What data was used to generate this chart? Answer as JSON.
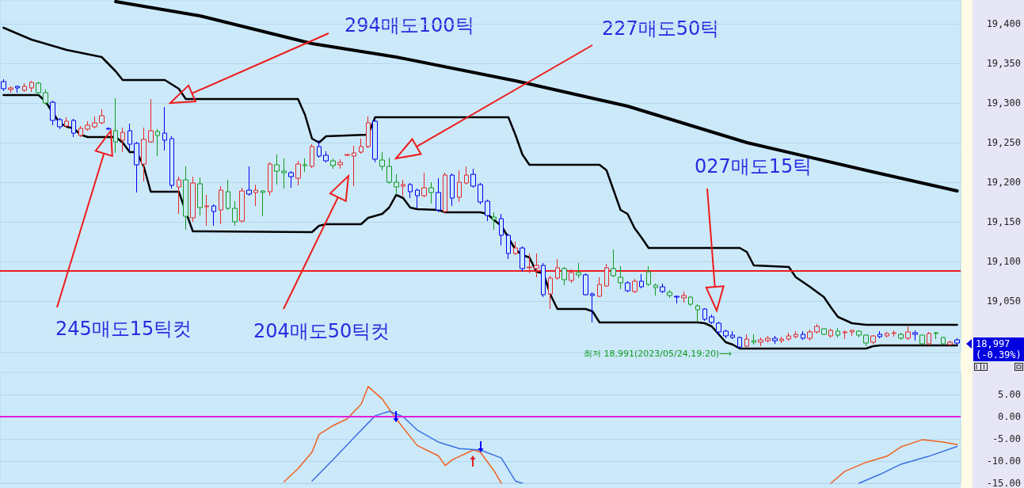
{
  "chart_data": [
    {
      "type": "candlestick",
      "categories": [
        null,
        null,
        null,
        null,
        null,
        null,
        null,
        null,
        null,
        null,
        null,
        null,
        null,
        null,
        null,
        null,
        null,
        null,
        null,
        null,
        null,
        null,
        null,
        null,
        null,
        null,
        null,
        null,
        null,
        null,
        null,
        null,
        null,
        null,
        null,
        null,
        null,
        null,
        null,
        null,
        null,
        null,
        null,
        null,
        null,
        null,
        null,
        null,
        null,
        null,
        null,
        null,
        null,
        null,
        null,
        null,
        null,
        null,
        null,
        null,
        null,
        null,
        null,
        null,
        null,
        null,
        null,
        null,
        null,
        null,
        null,
        null,
        null,
        null,
        null,
        null,
        null,
        null,
        null,
        null,
        null,
        null,
        null,
        null,
        null,
        null,
        null,
        null,
        null,
        null,
        null,
        null,
        null,
        null,
        null,
        null,
        null,
        null,
        null,
        null,
        null,
        null,
        null,
        null,
        null,
        null,
        null,
        null,
        null,
        null,
        null,
        null,
        null,
        null,
        null,
        null,
        null,
        null,
        null,
        null,
        null,
        null,
        null,
        null,
        null,
        null,
        null,
        null,
        null,
        null,
        null,
        null,
        null,
        null,
        null,
        null,
        null
      ],
      "ohlc": [
        [
          19327,
          19330,
          19315,
          19318
        ],
        [
          19317,
          19321,
          19313,
          19319
        ],
        [
          19321,
          19322,
          19313,
          19319
        ],
        [
          19316,
          19325,
          19314,
          19321
        ],
        [
          19319,
          19328,
          19314,
          19326
        ],
        [
          19325,
          19327,
          19310,
          19313
        ],
        [
          19313,
          19317,
          19298,
          19300
        ],
        [
          19301,
          19303,
          19272,
          19278
        ],
        [
          19279,
          19281,
          19267,
          19270
        ],
        [
          19271,
          19282,
          19269,
          19277
        ],
        [
          19278,
          19280,
          19257,
          19262
        ],
        [
          19259,
          19271,
          19257,
          19268
        ],
        [
          19267,
          19277,
          19265,
          19272
        ],
        [
          19270,
          19283,
          19268,
          19275
        ],
        [
          19275,
          19292,
          19273,
          19284
        ],
        [
          19268,
          19269,
          19266,
          19267
        ],
        [
          19265,
          19306,
          19237,
          19251
        ],
        [
          19253,
          19269,
          19238,
          19263
        ],
        [
          19265,
          19274,
          19240,
          19248
        ],
        [
          19249,
          19251,
          19187,
          19222
        ],
        [
          19223,
          19269,
          19201,
          19254
        ],
        [
          19251,
          19305,
          19250,
          19265
        ],
        [
          19264,
          19267,
          19233,
          19259
        ],
        [
          19262,
          19295,
          19240,
          19253
        ],
        [
          19255,
          19258,
          19192,
          19196
        ],
        [
          19194,
          19207,
          19160,
          19203
        ],
        [
          19203,
          19220,
          19140,
          19157
        ],
        [
          19155,
          19207,
          19150,
          19199
        ],
        [
          19198,
          19206,
          19158,
          19168
        ],
        [
          19169,
          19184,
          19145,
          19170
        ],
        [
          19170,
          19172,
          19145,
          19163
        ],
        [
          19165,
          19195,
          19147,
          19190
        ],
        [
          19188,
          19203,
          19165,
          19167
        ],
        [
          19167,
          19176,
          19145,
          19150
        ],
        [
          19151,
          19193,
          19149,
          19189
        ],
        [
          19190,
          19220,
          19183,
          19185
        ],
        [
          19187,
          19197,
          19170,
          19190
        ],
        [
          19189,
          19190,
          19157,
          19187
        ],
        [
          19188,
          19225,
          19183,
          19223
        ],
        [
          19222,
          19235,
          19197,
          19214
        ],
        [
          19214,
          19230,
          19192,
          19212
        ],
        [
          19212,
          19214,
          19193,
          19207
        ],
        [
          19205,
          19227,
          19196,
          19223
        ],
        [
          19222,
          19230,
          19213,
          19221
        ],
        [
          19220,
          19248,
          19218,
          19245
        ],
        [
          19245,
          19253,
          19231,
          19233
        ],
        [
          19234,
          19239,
          19225,
          19227
        ],
        [
          19227,
          19230,
          19217,
          19221
        ],
        [
          19222,
          19229,
          19217,
          19225
        ],
        [
          19234,
          19236,
          19233,
          19235
        ],
        [
          19233,
          19246,
          19195,
          19237
        ],
        [
          19238,
          19255,
          19236,
          19245
        ],
        [
          19245,
          19283,
          19243,
          19275
        ],
        [
          19277,
          19279,
          19225,
          19229
        ],
        [
          19228,
          19238,
          19215,
          19220
        ],
        [
          19220,
          19231,
          19198,
          19200
        ],
        [
          19200,
          19210,
          19184,
          19194
        ],
        [
          19195,
          19203,
          19183,
          19197
        ],
        [
          19197,
          19199,
          19180,
          19188
        ],
        [
          19190,
          19192,
          19167,
          19183
        ],
        [
          19183,
          19212,
          19181,
          19193
        ],
        [
          19193,
          19200,
          19173,
          19187
        ],
        [
          19187,
          19205,
          19162,
          19165
        ],
        [
          19163,
          19212,
          19161,
          19209
        ],
        [
          19209,
          19211,
          19170,
          19180
        ],
        [
          19181,
          19215,
          19175,
          19200
        ],
        [
          19199,
          19220,
          19197,
          19209
        ],
        [
          19210,
          19217,
          19193,
          19195
        ],
        [
          19197,
          19199,
          19172,
          19175
        ],
        [
          19176,
          19178,
          19151,
          19158
        ],
        [
          19156,
          19162,
          19140,
          19153
        ],
        [
          19154,
          19160,
          19120,
          19133
        ],
        [
          19133,
          19135,
          19103,
          19110
        ],
        [
          19110,
          19125,
          19108,
          19117
        ],
        [
          19117,
          19119,
          19087,
          19091
        ],
        [
          19092,
          19110,
          19085,
          19093
        ],
        [
          19091,
          19110,
          19080,
          19095
        ],
        [
          19095,
          19098,
          19055,
          19058
        ],
        [
          19059,
          19082,
          19040,
          19079
        ],
        [
          19079,
          19103,
          19077,
          19092
        ],
        [
          19091,
          19093,
          19070,
          19077
        ],
        [
          19076,
          19090,
          19073,
          19086
        ],
        [
          19086,
          19098,
          19079,
          19083
        ],
        [
          19083,
          19085,
          19057,
          19058
        ],
        [
          19059,
          19061,
          19023,
          19057
        ],
        [
          19056,
          19080,
          19055,
          19071
        ],
        [
          19069,
          19097,
          19068,
          19092
        ],
        [
          19091,
          19115,
          19080,
          19082
        ],
        [
          19080,
          19094,
          19065,
          19073
        ],
        [
          19073,
          19075,
          19061,
          19063
        ],
        [
          19062,
          19078,
          19060,
          19075
        ],
        [
          19075,
          19084,
          19066,
          19068
        ],
        [
          19087,
          19094,
          19069,
          19071
        ],
        [
          19070,
          19072,
          19057,
          19067
        ],
        [
          19068,
          19072,
          19060,
          19062
        ],
        [
          19061,
          19064,
          19054,
          19057
        ],
        [
          19056,
          19057,
          19047,
          19055
        ],
        [
          19054,
          19062,
          19048,
          19057
        ],
        [
          19055,
          19056,
          19044,
          19046
        ],
        [
          19044,
          19046,
          19024,
          19039
        ],
        [
          19040,
          19041,
          19025,
          19027
        ],
        [
          19030,
          19033,
          19021,
          19023
        ],
        [
          19022,
          19024,
          19008,
          19011
        ],
        [
          19012,
          19014,
          19003,
          19006
        ],
        [
          19007,
          19012,
          19002,
          19004
        ],
        [
          19004,
          19005,
          18991,
          18992
        ],
        [
          18993,
          19008,
          18992,
          19002
        ],
        [
          19000,
          19008,
          18995,
          18998
        ],
        [
          18998,
          19004,
          18993,
          19001
        ],
        [
          19000,
          19006,
          18998,
          19003
        ],
        [
          19003,
          19006,
          18996,
          19000
        ],
        [
          19000,
          19005,
          18997,
          19002
        ],
        [
          19002,
          19010,
          19000,
          19006
        ],
        [
          19005,
          19012,
          19003,
          19008
        ],
        [
          19008,
          19012,
          19001,
          19003
        ],
        [
          19003,
          19014,
          19000,
          19011
        ],
        [
          19011,
          19021,
          19009,
          19018
        ],
        [
          19015,
          19016,
          19007,
          19008
        ],
        [
          19006,
          19015,
          19004,
          19013
        ],
        [
          19012,
          19016,
          19004,
          19007
        ],
        [
          19010,
          19013,
          19002,
          19011
        ],
        [
          19011,
          19014,
          19006,
          19013
        ],
        [
          19012,
          19013,
          19004,
          19007
        ],
        [
          19007,
          19008,
          18993,
          18997
        ],
        [
          18998,
          19007,
          18996,
          19006
        ],
        [
          19008,
          19012,
          19003,
          19005
        ],
        [
          19006,
          19011,
          19004,
          19009
        ],
        [
          19009,
          19013,
          19005,
          19010
        ],
        [
          19008,
          19010,
          19001,
          19003
        ],
        [
          19003,
          19018,
          19001,
          19011
        ],
        [
          19010,
          19013,
          19000,
          19008
        ],
        [
          19007,
          19008,
          18995,
          18996
        ],
        [
          18996,
          19011,
          18994,
          19009
        ],
        [
          19010,
          19011,
          19002,
          19009
        ],
        [
          19004,
          19005,
          18995,
          18996
        ],
        [
          18995,
          19000,
          18994,
          18998
        ],
        [
          19001,
          19003,
          18995,
          18997
        ]
      ],
      "colors": [
        "#0000f0",
        "#e62828",
        "#0000f0",
        "#e62828",
        "#e62828",
        "#109c20",
        "#109c20",
        "#0000f0",
        "#0000f0",
        "#e62828",
        "#0000f0",
        "#e62828",
        "#e62828",
        "#e62828",
        "#e62828",
        "#0000f0",
        "#109c20",
        "#e62828",
        "#0000f0",
        "#0000f0",
        "#e62828",
        "#e62828",
        "#109c20",
        "#0000f0",
        "#0000f0",
        "#e62828",
        "#109c20",
        "#e62828",
        "#109c20",
        "#e62828",
        "#0000f0",
        "#e62828",
        "#109c20",
        "#109c20",
        "#e62828",
        "#0000f0",
        "#e62828",
        "#109c20",
        "#e62828",
        "#109c20",
        "#109c20",
        "#0000f0",
        "#e62828",
        "#109c20",
        "#e62828",
        "#0000f0",
        "#0000f0",
        "#109c20",
        "#e62828",
        "#e62828",
        "#e62828",
        "#e62828",
        "#e62828",
        "#0000f0",
        "#109c20",
        "#109c20",
        "#109c20",
        "#e62828",
        "#0000f0",
        "#0000f0",
        "#e62828",
        "#109c20",
        "#0000f0",
        "#e62828",
        "#0000f0",
        "#e62828",
        "#e62828",
        "#0000f0",
        "#0000f0",
        "#0000f0",
        "#109c20",
        "#0000f0",
        "#0000f0",
        "#e62828",
        "#0000f0",
        "#e62828",
        "#e62828",
        "#0000f0",
        "#e62828",
        "#e62828",
        "#109c20",
        "#e62828",
        "#109c20",
        "#0000f0",
        "#0000f0",
        "#e62828",
        "#e62828",
        "#109c20",
        "#109c20",
        "#0000f0",
        "#e62828",
        "#0000f0",
        "#109c20",
        "#109c20",
        "#0000f0",
        "#109c20",
        "#0000f0",
        "#e62828",
        "#109c20",
        "#109c20",
        "#0000f0",
        "#0000f0",
        "#0000f0",
        "#0000f0",
        "#0000f0",
        "#0000f0",
        "#e62828",
        "#109c20",
        "#e62828",
        "#e62828",
        "#0000f0",
        "#e62828",
        "#e62828",
        "#e62828",
        "#0000f0",
        "#e62828",
        "#e62828",
        "#109c20",
        "#e62828",
        "#109c20",
        "#e62828",
        "#e62828",
        "#109c20",
        "#109c20",
        "#e62828",
        "#0000f0",
        "#e62828",
        "#e62828",
        "#109c20",
        "#e62828",
        "#0000f0",
        "#109c20",
        "#e62828",
        "#109c20",
        "#109c20",
        "#e62828",
        "#0000f0"
      ],
      "series": [
        {
          "type": "line",
          "color": "#000000",
          "values": [
            19395,
            null,
            null,
            null,
            19380,
            null,
            null,
            null,
            null,
            19367,
            null,
            null,
            null,
            null,
            19358,
            null,
            19340,
            19329,
            null,
            null,
            null,
            null,
            null,
            19329,
            null,
            19318,
            19305,
            null,
            null,
            null,
            null,
            null,
            null,
            null,
            null,
            null,
            null,
            null,
            null,
            null,
            null,
            null,
            19305,
            19285,
            19255,
            19250,
            19258,
            null,
            null,
            null,
            null,
            null,
            19260,
            19282,
            null,
            null,
            null,
            null,
            null,
            null,
            null,
            null,
            null,
            null,
            null,
            null,
            null,
            null,
            null,
            null,
            null,
            null,
            19282,
            19260,
            19235,
            19222,
            null,
            null,
            null,
            null,
            null,
            null,
            null,
            null,
            null,
            19222,
            19215,
            19190,
            19165,
            19160,
            19142,
            19130,
            19117,
            null,
            null,
            null,
            null,
            null,
            null,
            null,
            null,
            null,
            null,
            null,
            null,
            19117,
            19112,
            19095,
            null,
            null,
            null,
            null,
            19093,
            19080,
            null,
            19068,
            null,
            19055,
            19042,
            19030,
            null,
            19022,
            null,
            19020,
            null,
            null,
            null,
            null,
            null,
            null,
            null,
            null,
            null,
            null,
            null,
            null,
            19020
          ]
        },
        {
          "type": "line",
          "color": "#000000",
          "values": [
            19310,
            null,
            null,
            null,
            null,
            19310,
            19302,
            19288,
            19275,
            19270,
            19268,
            19260,
            19257,
            null,
            null,
            19257,
            19257,
            19250,
            19238,
            19238,
            19220,
            19188,
            null,
            null,
            null,
            19188,
            null,
            19138,
            null,
            null,
            null,
            null,
            null,
            null,
            null,
            null,
            null,
            null,
            null,
            null,
            null,
            null,
            null,
            null,
            19137,
            19145,
            19147,
            null,
            null,
            null,
            null,
            19147,
            19155,
            null,
            19160,
            19168,
            19184,
            19180,
            19168,
            19166,
            null,
            null,
            19165,
            19162,
            null,
            null,
            null,
            null,
            19162,
            19160,
            19152,
            19145,
            19130,
            19115,
            19108,
            19105,
            19087,
            19085,
            19058,
            19040,
            null,
            null,
            null,
            19040,
            19037,
            19023,
            null,
            null,
            null,
            null,
            null,
            null,
            null,
            null,
            null,
            null,
            null,
            null,
            null,
            19023,
            19022,
            19018,
            19008,
            18998,
            18995,
            18990,
            null,
            null,
            null,
            null,
            null,
            null,
            null,
            null,
            null,
            null,
            null,
            null,
            null,
            null,
            null,
            null,
            null,
            18990,
            18993,
            18994,
            null,
            null,
            null,
            null,
            null,
            null,
            null,
            null,
            null,
            null,
            18994
          ]
        },
        {
          "type": "line",
          "color": "#000000",
          "values": [
            null,
            null,
            null,
            null,
            null,
            null,
            null,
            null,
            null,
            null,
            null,
            null,
            null,
            null,
            null,
            null,
            19428,
            null,
            null,
            null,
            null,
            null,
            null,
            null,
            null,
            null,
            null,
            null,
            19410,
            null,
            null,
            null,
            null,
            null,
            null,
            null,
            null,
            null,
            null,
            null,
            null,
            null,
            null,
            null,
            19375,
            null,
            null,
            null,
            null,
            null,
            null,
            null,
            null,
            null,
            null,
            null,
            19358,
            null,
            null,
            null,
            null,
            null,
            null,
            null,
            null,
            null,
            null,
            null,
            null,
            null,
            null,
            null,
            null,
            19328,
            null,
            null,
            null,
            null,
            null,
            null,
            null,
            null,
            null,
            null,
            null,
            null,
            null,
            null,
            null,
            19296,
            null,
            null,
            null,
            null,
            null,
            null,
            null,
            null,
            null,
            null,
            null,
            null,
            null,
            null,
            null,
            null,
            19250,
            null,
            null,
            null,
            null,
            null,
            null,
            null,
            null,
            null,
            null,
            null,
            null,
            null,
            null,
            null,
            null,
            19215,
            null,
            null,
            null,
            null,
            null,
            null,
            null,
            null,
            null,
            null,
            null,
            null,
            19189
          ]
        }
      ],
      "ylim": [
        18985,
        19430
      ],
      "yticks": [
        {
          "value": 19050,
          "label": "19,050"
        },
        {
          "value": 19100,
          "label": "19,100"
        },
        {
          "value": 19150,
          "label": "19,150"
        },
        {
          "value": 19200,
          "label": "19,200"
        },
        {
          "value": 19250,
          "label": "19,250"
        },
        {
          "value": 19300,
          "label": "19,300"
        },
        {
          "value": 19350,
          "label": "19,350"
        },
        {
          "value": 19400,
          "label": "19,400"
        }
      ],
      "grid": "y",
      "tick_labels": "y",
      "ref_lines": [
        {
          "axis": "y",
          "value": 19088,
          "color": "#ee1c1c"
        }
      ],
      "annotations": [
        "294매도100틱",
        "227매도50틱",
        "027매도15틱",
        "245매도15틱컷",
        "204매도50틱컷",
        "최저 18,991(2023/05/24,19:20)⟶",
        "18,997 (-0.39%)"
      ]
    },
    {
      "type": "line",
      "categories": [
        null,
        null,
        null,
        null,
        null,
        null,
        null,
        null,
        null,
        null,
        null,
        null,
        null,
        null,
        null,
        null,
        null,
        null,
        null,
        null,
        null,
        null,
        null,
        null,
        null,
        null,
        null,
        null,
        null,
        null,
        null,
        null,
        null,
        null,
        null,
        null,
        null,
        null,
        null,
        null,
        null,
        null,
        null,
        null,
        null,
        null,
        null,
        null,
        null,
        null,
        null,
        null,
        null,
        null,
        null,
        null,
        null,
        null,
        null,
        null,
        null,
        null,
        null,
        null,
        null,
        null,
        null,
        null,
        null,
        null,
        null,
        null,
        null,
        null,
        null,
        null,
        null,
        null,
        null,
        null,
        null,
        null,
        null,
        null,
        null,
        null,
        null,
        null,
        null,
        null,
        null,
        null,
        null,
        null,
        null,
        null,
        null,
        null,
        null,
        null,
        null,
        null,
        null,
        null,
        null,
        null,
        null,
        null,
        null,
        null,
        null,
        null,
        null,
        null,
        null,
        null,
        null,
        null,
        null,
        null,
        null,
        null,
        null,
        null,
        null,
        null,
        null,
        null,
        null,
        null,
        null,
        null,
        null,
        null,
        null,
        null,
        null
      ],
      "series": [
        {
          "color": "#f06020",
          "values": [
            null,
            null,
            null,
            null,
            null,
            null,
            null,
            null,
            null,
            null,
            null,
            null,
            null,
            null,
            null,
            null,
            null,
            null,
            null,
            null,
            null,
            null,
            null,
            null,
            null,
            null,
            null,
            null,
            null,
            null,
            null,
            null,
            null,
            null,
            null,
            null,
            null,
            null,
            null,
            null,
            -14.7,
            null,
            -11.7,
            null,
            -8,
            -4,
            null,
            -2,
            null,
            -0.5,
            null,
            2.8,
            6.8,
            null,
            4,
            null,
            -0.5,
            null,
            null,
            -6.5,
            null,
            null,
            -8.8,
            -11,
            -9.7,
            null,
            null,
            -7.5,
            -8,
            null,
            -12.3,
            -15,
            null,
            null,
            null,
            null,
            null,
            null,
            null,
            null,
            null,
            null,
            null,
            null,
            null,
            null,
            null,
            null,
            null,
            null,
            null,
            null,
            null,
            null,
            null,
            null,
            null,
            null,
            null,
            null,
            null,
            null,
            null,
            null,
            null,
            null,
            null,
            null,
            null,
            null,
            null,
            null,
            null,
            null,
            null,
            null,
            null,
            null,
            null,
            null,
            null,
            null,
            null,
            null,
            null,
            null,
            null,
            null,
            null,
            null,
            null,
            null,
            null,
            null,
            null,
            null,
            null
          ]
        },
        {
          "color": "#f06020",
          "values": [
            null,
            null,
            null,
            null,
            null,
            null,
            null,
            null,
            null,
            null,
            null,
            null,
            null,
            null,
            null,
            null,
            null,
            null,
            null,
            null,
            null,
            null,
            null,
            null,
            null,
            null,
            null,
            null,
            null,
            null,
            null,
            null,
            null,
            null,
            null,
            null,
            null,
            null,
            null,
            null,
            null,
            null,
            null,
            null,
            null,
            null,
            null,
            null,
            null,
            null,
            null,
            null,
            null,
            null,
            null,
            null,
            null,
            null,
            null,
            null,
            null,
            null,
            null,
            null,
            null,
            null,
            null,
            null,
            null,
            null,
            null,
            null,
            null,
            null,
            null,
            null,
            null,
            null,
            null,
            null,
            null,
            null,
            null,
            null,
            null,
            null,
            null,
            null,
            null,
            null,
            null,
            null,
            null,
            null,
            null,
            null,
            null,
            null,
            null,
            null,
            null,
            null,
            null,
            null,
            null,
            null,
            null,
            null,
            null,
            null,
            null,
            null,
            null,
            null,
            null,
            null,
            null,
            null,
            -15,
            null,
            -12.3,
            null,
            null,
            -10.3,
            null,
            null,
            -8.9,
            null,
            -6.8,
            null,
            null,
            -5.2,
            null,
            null,
            -5.7,
            null,
            -6.3
          ]
        },
        {
          "color": "#3a70e0",
          "values": [
            null,
            null,
            null,
            null,
            null,
            null,
            null,
            null,
            null,
            null,
            null,
            null,
            null,
            null,
            null,
            null,
            null,
            null,
            null,
            null,
            null,
            null,
            null,
            null,
            null,
            null,
            null,
            null,
            null,
            null,
            null,
            null,
            null,
            null,
            null,
            null,
            null,
            null,
            null,
            null,
            null,
            null,
            null,
            null,
            -14.5,
            null,
            null,
            -9.7,
            null,
            null,
            -4.7,
            null,
            null,
            0.2,
            null,
            1.2,
            null,
            0,
            null,
            -3,
            null,
            null,
            -5.7,
            null,
            null,
            -7.2,
            null,
            null,
            -7.5,
            null,
            null,
            -9.3,
            null,
            -14.5,
            -15,
            null,
            null,
            null,
            null,
            null,
            null,
            null,
            null,
            null,
            null,
            null,
            null,
            null,
            null,
            null,
            null,
            null,
            null,
            null,
            null,
            null,
            null,
            null,
            null,
            null,
            null,
            null,
            null,
            null,
            null,
            null,
            null,
            null,
            null,
            null,
            null,
            null,
            null,
            null,
            null,
            null,
            null,
            null,
            null,
            null,
            null,
            null,
            null,
            null,
            null,
            null,
            null,
            null,
            null,
            null,
            null,
            null,
            null,
            null,
            null,
            null,
            null
          ]
        },
        {
          "color": "#3a70e0",
          "values": [
            null,
            null,
            null,
            null,
            null,
            null,
            null,
            null,
            null,
            null,
            null,
            null,
            null,
            null,
            null,
            null,
            null,
            null,
            null,
            null,
            null,
            null,
            null,
            null,
            null,
            null,
            null,
            null,
            null,
            null,
            null,
            null,
            null,
            null,
            null,
            null,
            null,
            null,
            null,
            null,
            null,
            null,
            null,
            null,
            null,
            null,
            null,
            null,
            null,
            null,
            null,
            null,
            null,
            null,
            null,
            null,
            null,
            null,
            null,
            null,
            null,
            null,
            null,
            null,
            null,
            null,
            null,
            null,
            null,
            null,
            null,
            null,
            null,
            null,
            null,
            null,
            null,
            null,
            null,
            null,
            null,
            null,
            null,
            null,
            null,
            null,
            null,
            null,
            null,
            null,
            null,
            null,
            null,
            null,
            null,
            null,
            null,
            null,
            null,
            null,
            null,
            null,
            null,
            null,
            null,
            null,
            null,
            null,
            null,
            null,
            null,
            null,
            null,
            null,
            null,
            null,
            null,
            null,
            null,
            null,
            null,
            null,
            -15,
            null,
            null,
            -13,
            null,
            null,
            -10.7,
            null,
            null,
            null,
            -8.9,
            null,
            null,
            null,
            -6.7
          ]
        }
      ],
      "ylim": [
        -15,
        10
      ],
      "yticks": [
        {
          "value": -15,
          "label": "-15.00"
        },
        {
          "value": -10,
          "label": "-10.00"
        },
        {
          "value": -5,
          "label": "-5.00"
        },
        {
          "value": 0,
          "label": "0.00"
        },
        {
          "value": 5,
          "label": "5.00"
        }
      ],
      "grid": "y",
      "tick_labels": "y",
      "ref_lines": [
        {
          "axis": "y",
          "value": 0,
          "color": "#e020e0"
        }
      ]
    }
  ]
}
